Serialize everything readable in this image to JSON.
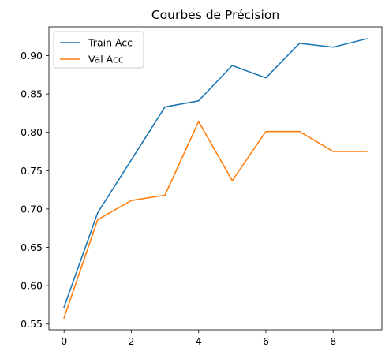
{
  "chart_data": {
    "type": "line",
    "title": "Courbes de Précision",
    "xlabel": "",
    "ylabel": "",
    "xlim": [
      -0.45,
      9.45
    ],
    "ylim": [
      0.5425,
      0.9375
    ],
    "xticks": [
      0,
      2,
      4,
      6,
      8
    ],
    "xtick_labels": [
      "0",
      "2",
      "4",
      "6",
      "8"
    ],
    "yticks": [
      0.55,
      0.6,
      0.65,
      0.7,
      0.75,
      0.8,
      0.85,
      0.9
    ],
    "ytick_labels": [
      "0.55",
      "0.60",
      "0.65",
      "0.70",
      "0.75",
      "0.80",
      "0.85",
      "0.90"
    ],
    "grid": false,
    "legend_position": "top-left",
    "x": [
      0,
      1,
      2,
      3,
      4,
      5,
      6,
      7,
      8,
      9
    ],
    "series": [
      {
        "name": "Train Acc",
        "color": "#1f77b4",
        "values": [
          0.572,
          0.695,
          0.764,
          0.833,
          0.841,
          0.887,
          0.871,
          0.916,
          0.911,
          0.922
        ]
      },
      {
        "name": "Val Acc",
        "color": "#ff7f0e",
        "values": [
          0.558,
          0.686,
          0.711,
          0.718,
          0.814,
          0.737,
          0.801,
          0.801,
          0.775,
          0.775
        ]
      }
    ]
  }
}
